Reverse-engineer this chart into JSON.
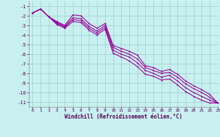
{
  "xlabel": "Windchill (Refroidissement éolien,°C)",
  "background_color": "#c8f0f0",
  "grid_color": "#99cccc",
  "line_color": "#990099",
  "xlim": [
    -0.5,
    23
  ],
  "ylim": [
    -11.5,
    -0.5
  ],
  "yticks": [
    -11,
    -10,
    -9,
    -8,
    -7,
    -6,
    -5,
    -4,
    -3,
    -2,
    -1
  ],
  "xticks": [
    0,
    1,
    2,
    3,
    4,
    5,
    6,
    7,
    8,
    9,
    10,
    11,
    12,
    13,
    14,
    15,
    16,
    17,
    18,
    19,
    20,
    21,
    22,
    23
  ],
  "lines": [
    {
      "x": [
        0,
        1,
        2,
        3,
        4,
        5,
        6,
        7,
        8,
        9,
        10,
        11,
        12,
        13,
        14,
        15,
        16,
        17,
        18,
        19,
        20,
        21,
        22,
        23
      ],
      "y": [
        -1.7,
        -1.3,
        -2.1,
        -2.6,
        -3.0,
        -1.9,
        -2.0,
        -2.8,
        -3.3,
        -2.8,
        -5.1,
        -5.4,
        -5.7,
        -6.1,
        -7.2,
        -7.4,
        -7.8,
        -7.6,
        -8.1,
        -8.8,
        -9.3,
        -9.7,
        -10.2,
        -11.1
      ]
    },
    {
      "x": [
        0,
        1,
        2,
        3,
        4,
        5,
        6,
        7,
        8,
        9,
        10,
        11,
        12,
        13,
        14,
        15,
        16,
        17,
        18,
        19,
        20,
        21,
        22,
        23
      ],
      "y": [
        -1.7,
        -1.3,
        -2.1,
        -2.7,
        -3.1,
        -2.2,
        -2.3,
        -3.1,
        -3.6,
        -3.0,
        -5.3,
        -5.7,
        -6.0,
        -6.5,
        -7.4,
        -7.7,
        -8.0,
        -7.9,
        -8.4,
        -9.1,
        -9.6,
        -10.0,
        -10.5,
        -11.1
      ]
    },
    {
      "x": [
        0,
        1,
        2,
        3,
        4,
        5,
        6,
        7,
        8,
        9,
        10,
        11,
        12,
        13,
        14,
        15,
        16,
        17,
        18,
        19,
        20,
        21,
        22,
        23
      ],
      "y": [
        -1.7,
        -1.3,
        -2.1,
        -2.8,
        -3.2,
        -2.4,
        -2.5,
        -3.3,
        -3.8,
        -3.2,
        -5.6,
        -6.0,
        -6.3,
        -6.9,
        -7.7,
        -8.0,
        -8.4,
        -8.2,
        -8.8,
        -9.5,
        -10.0,
        -10.4,
        -10.8,
        -11.1
      ]
    },
    {
      "x": [
        0,
        1,
        2,
        3,
        4,
        5,
        6,
        7,
        8,
        9,
        10,
        11,
        12,
        13,
        14,
        15,
        16,
        17,
        18,
        19,
        20,
        21,
        22,
        23
      ],
      "y": [
        -1.7,
        -1.3,
        -2.1,
        -2.9,
        -3.3,
        -2.6,
        -2.7,
        -3.5,
        -4.0,
        -3.4,
        -5.9,
        -6.3,
        -6.7,
        -7.3,
        -8.1,
        -8.3,
        -8.7,
        -8.6,
        -9.2,
        -9.9,
        -10.4,
        -10.8,
        -11.1,
        -11.1
      ]
    }
  ]
}
